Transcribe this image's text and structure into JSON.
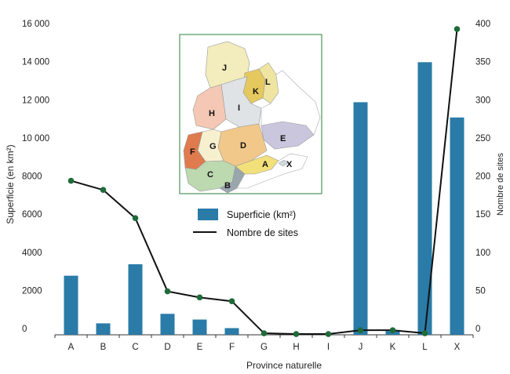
{
  "chart_data": {
    "type": "bar",
    "categories": [
      "A",
      "B",
      "C",
      "D",
      "E",
      "F",
      "G",
      "H",
      "I",
      "J",
      "K",
      "L",
      "X"
    ],
    "xlabel": "Province naturelle",
    "ylabel": "Superficie (en km²)",
    "y2label": "Nombre de sites",
    "ylim": [
      0,
      16000
    ],
    "y2lim": [
      0,
      400
    ],
    "yticks": [
      "0",
      "2000",
      "4000",
      "6000",
      "8000",
      "10 000",
      "12 000",
      "14 000",
      "16 000"
    ],
    "y2ticks": [
      "0",
      "50",
      "100",
      "150",
      "200",
      "250",
      "300",
      "350",
      "400"
    ],
    "series": [
      {
        "name": "Superficie (km²)",
        "type": "bar",
        "axis": "left",
        "values": [
          3100,
          600,
          3700,
          1100,
          800,
          350,
          0,
          0,
          0,
          12200,
          200,
          14300,
          11400
        ]
      },
      {
        "name": "Nombre de sites",
        "type": "line",
        "axis": "right",
        "values": [
          202,
          190,
          153,
          57,
          49,
          44,
          2,
          1,
          1,
          6,
          6,
          2,
          401
        ]
      }
    ],
    "legend": "center (inset)",
    "grid": false,
    "colors": {
      "bar": "#2a7ba7",
      "line": "#111111",
      "marker": "#1e6b3a"
    },
    "inset_map_labels": [
      "J",
      "K",
      "L",
      "I",
      "H",
      "G",
      "F",
      "D",
      "E",
      "C",
      "B",
      "A",
      "X"
    ]
  }
}
